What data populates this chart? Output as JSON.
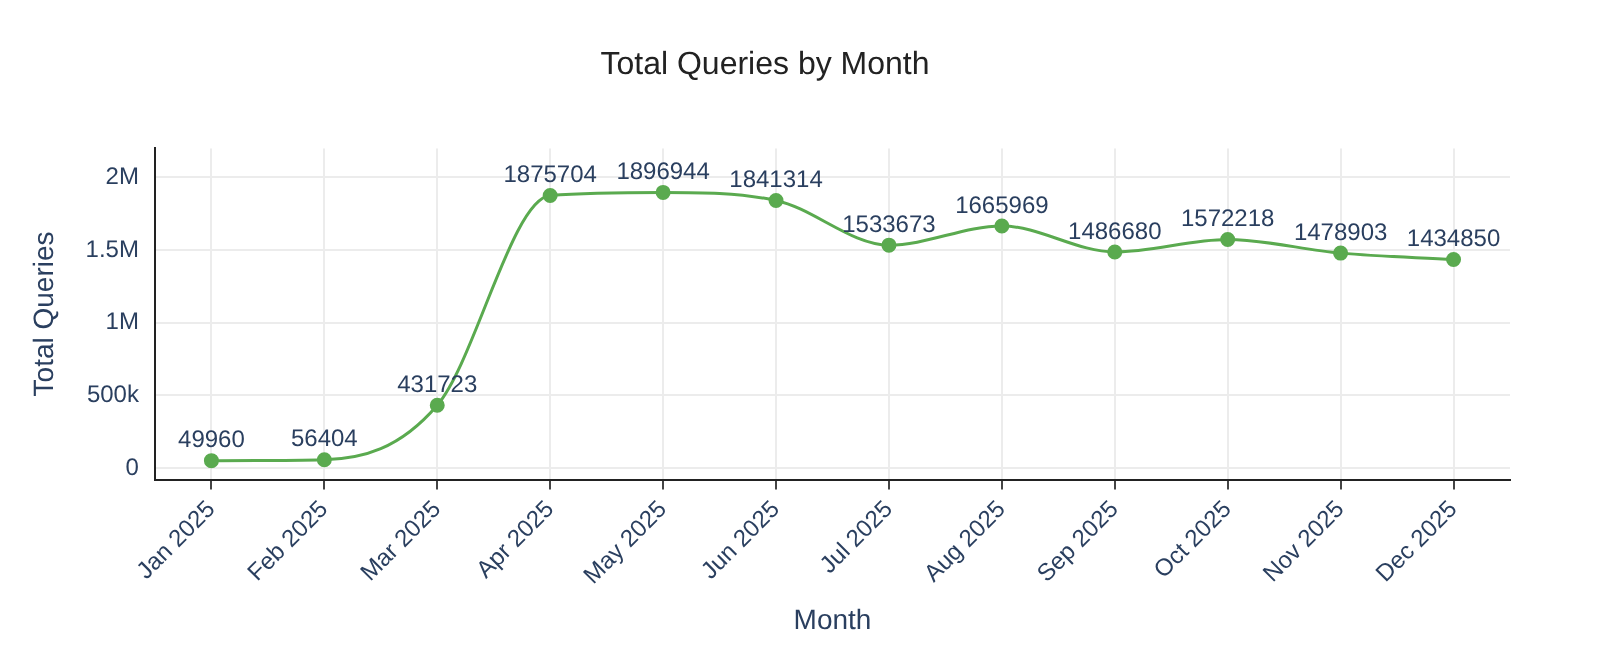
{
  "chart_data": {
    "type": "line",
    "title": "Total Queries by Month",
    "xlabel": "Month",
    "ylabel": "Total Queries",
    "categories": [
      "Jan 2025",
      "Feb 2025",
      "Mar 2025",
      "Apr 2025",
      "May 2025",
      "Jun 2025",
      "Jul 2025",
      "Aug 2025",
      "Sep 2025",
      "Oct 2025",
      "Nov 2025",
      "Dec 2025"
    ],
    "series": [
      {
        "color": "#5aaa4f",
        "values": [
          49960,
          56404,
          431723,
          1875704,
          1896944,
          1841314,
          1533673,
          1665969,
          1486680,
          1572218,
          1478903,
          1434850
        ]
      }
    ],
    "ylim": [
      -80000,
      2200000
    ],
    "yticks": [
      0,
      {
        "value": 500000,
        "label": "500k"
      },
      {
        "value": 1000000,
        "label": "1M"
      },
      {
        "value": 1500000,
        "label": "1.5M"
      },
      {
        "value": 2000000,
        "label": "2M"
      }
    ],
    "grid": true,
    "marker": "circle",
    "line_style": "solid",
    "data_labels": true,
    "legend": false
  }
}
